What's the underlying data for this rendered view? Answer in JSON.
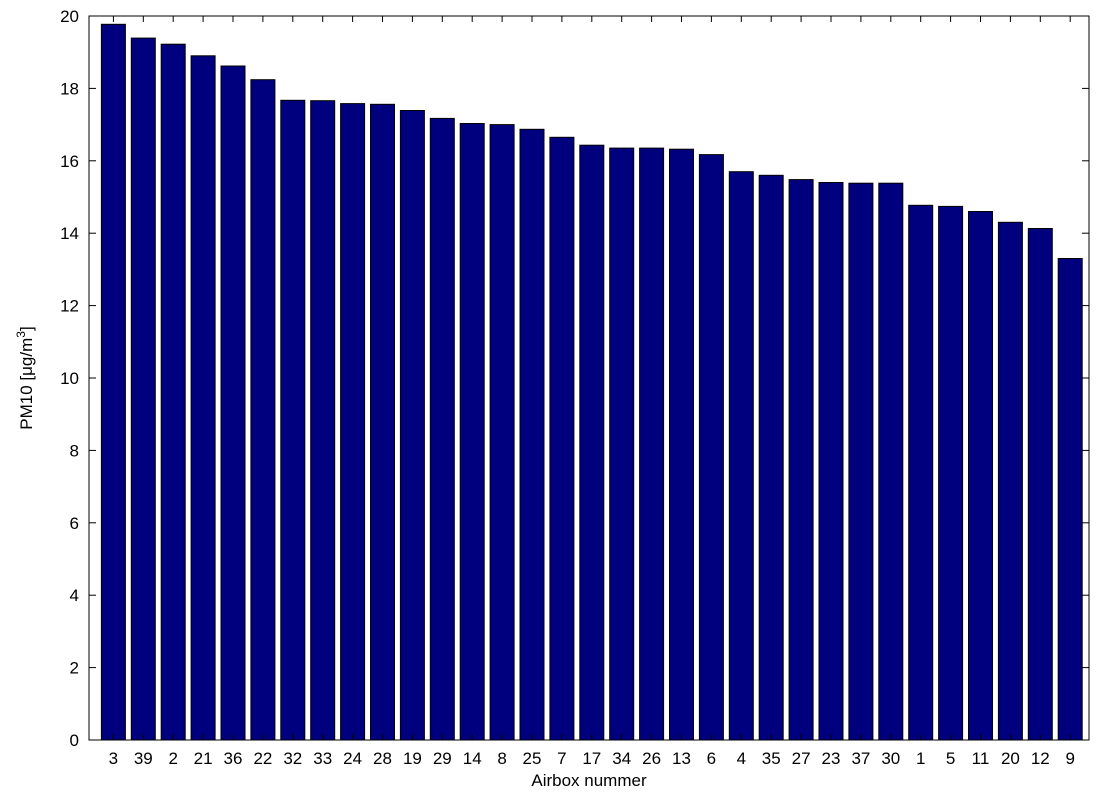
{
  "chart_data": {
    "type": "bar",
    "categories": [
      "3",
      "39",
      "2",
      "21",
      "36",
      "22",
      "32",
      "33",
      "24",
      "28",
      "19",
      "29",
      "14",
      "8",
      "25",
      "7",
      "17",
      "34",
      "26",
      "13",
      "6",
      "4",
      "35",
      "27",
      "23",
      "37",
      "30",
      "1",
      "5",
      "11",
      "20",
      "12",
      "9"
    ],
    "values": [
      19.77,
      19.39,
      19.22,
      18.9,
      18.62,
      18.24,
      17.67,
      17.66,
      17.58,
      17.56,
      17.39,
      17.17,
      17.03,
      17.0,
      16.87,
      16.65,
      16.43,
      16.35,
      16.35,
      16.32,
      16.17,
      15.7,
      15.6,
      15.48,
      15.4,
      15.38,
      15.38,
      14.77,
      14.74,
      14.6,
      14.3,
      14.13,
      13.3
    ],
    "xlabel": "Airbox nummer",
    "ylabel_main": "PM10 [",
    "ylabel_mu": "μ",
    "ylabel_unit": "g/m",
    "ylabel_exp": "3",
    "ylabel_close": "]",
    "ylim": [
      0,
      20
    ],
    "yticks": [
      "0",
      "2",
      "4",
      "6",
      "8",
      "10",
      "12",
      "14",
      "16",
      "18",
      "20"
    ],
    "bar_color": "#00007f",
    "grid": false
  }
}
